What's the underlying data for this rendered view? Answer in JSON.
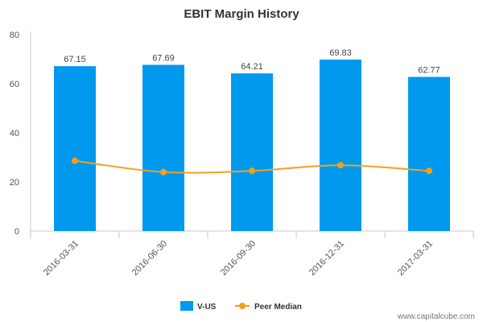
{
  "chart_data": {
    "type": "bar",
    "title": "EBIT Margin History",
    "categories": [
      "2016-03-31",
      "2016-06-30",
      "2016-09-30",
      "2016-12-31",
      "2017-03-31"
    ],
    "series": [
      {
        "name": "V-US",
        "type": "bar",
        "color": "#0099ee",
        "values": [
          67.15,
          67.69,
          64.21,
          69.83,
          62.77
        ]
      },
      {
        "name": "Peer Median",
        "type": "line",
        "color": "#f5a01a",
        "values": [
          28.6,
          24.0,
          24.5,
          26.8,
          24.5
        ]
      }
    ],
    "data_labels": [
      "67.15",
      "67.69",
      "64.21",
      "69.83",
      "62.77"
    ],
    "yticks": [
      0,
      20,
      40,
      60,
      80
    ],
    "ylim": [
      0,
      80
    ],
    "xlabel": "",
    "ylabel": "",
    "grid": false,
    "legend_position": "bottom-center"
  },
  "credit": "www.capitalcube.com"
}
